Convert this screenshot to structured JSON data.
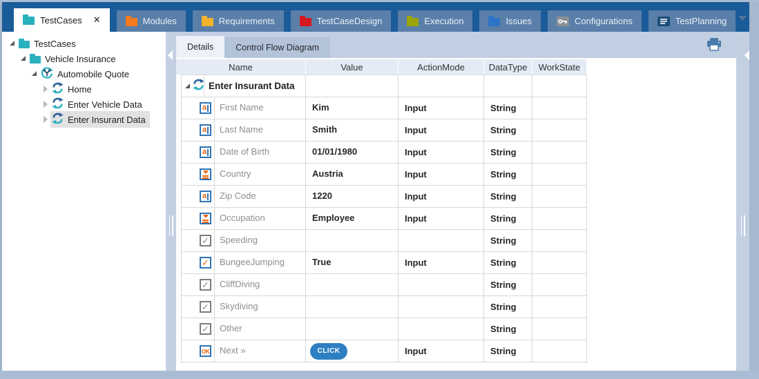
{
  "tabbar": {
    "tabs": [
      {
        "label": "TestCases",
        "icon": "folder-teal-icon",
        "icon_color": "#29b0bd",
        "active": true,
        "closable": true
      },
      {
        "label": "Modules",
        "icon": "folder-orange-icon",
        "icon_color": "#f47b20",
        "active": false
      },
      {
        "label": "Requirements",
        "icon": "folder-amber-icon",
        "icon_color": "#f5b32b",
        "active": false
      },
      {
        "label": "TestCaseDesign",
        "icon": "folder-red-icon",
        "icon_color": "#d6191f",
        "active": false
      },
      {
        "label": "Execution",
        "icon": "folder-olive-icon",
        "icon_color": "#9ba50a",
        "active": false
      },
      {
        "label": "Issues",
        "icon": "folder-blue-icon",
        "icon_color": "#2d74c6",
        "active": false
      },
      {
        "label": "Configurations",
        "icon": "key-icon",
        "icon_color": "#8b9094",
        "active": false
      },
      {
        "label": "TestPlanning",
        "icon": "list-icon",
        "icon_color": "#1d4e79",
        "active": false
      }
    ],
    "close_glyph": "✕"
  },
  "tree": {
    "items": [
      {
        "label": "TestCases",
        "level": 0,
        "state": "expanded",
        "icon": "folder-icon",
        "selected": false
      },
      {
        "label": "Vehicle Insurance",
        "level": 1,
        "state": "expanded",
        "icon": "folder-icon",
        "selected": false
      },
      {
        "label": "Automobile Quote",
        "level": 2,
        "state": "expanded",
        "icon": "testcase-icon",
        "selected": false
      },
      {
        "label": "Home",
        "level": 3,
        "state": "collapsed",
        "icon": "sync-icon",
        "selected": false
      },
      {
        "label": "Enter Vehicle Data",
        "level": 3,
        "state": "collapsed",
        "icon": "sync-icon",
        "selected": false
      },
      {
        "label": "Enter Insurant Data",
        "level": 3,
        "state": "collapsed",
        "icon": "sync-icon",
        "selected": true
      }
    ]
  },
  "details": {
    "tabs": [
      {
        "label": "Details",
        "active": true
      },
      {
        "label": "Control Flow Diagram",
        "active": false
      }
    ]
  },
  "table": {
    "columns": [
      "Name",
      "Value",
      "ActionMode",
      "DataType",
      "WorkState"
    ],
    "root_row": {
      "name": "Enter Insurant Data",
      "icon": "sync-icon",
      "expanded": true
    },
    "rows": [
      {
        "icon": "textbox-icon",
        "name": "First Name",
        "value": "Kim",
        "action_mode": "Input",
        "data_type": "String",
        "work_state": ""
      },
      {
        "icon": "textbox-icon",
        "name": "Last Name",
        "value": "Smith",
        "action_mode": "Input",
        "data_type": "String",
        "work_state": ""
      },
      {
        "icon": "textbox-icon",
        "name": "Date of Birth",
        "value": "01/01/1980",
        "action_mode": "Input",
        "data_type": "String",
        "work_state": ""
      },
      {
        "icon": "dropdown-icon",
        "name": "Country",
        "value": "Austria",
        "action_mode": "Input",
        "data_type": "String",
        "work_state": ""
      },
      {
        "icon": "textbox-icon",
        "name": "Zip Code",
        "value": "1220",
        "action_mode": "Input",
        "data_type": "String",
        "work_state": ""
      },
      {
        "icon": "dropdown-icon",
        "name": "Occupation",
        "value": "Employee",
        "action_mode": "Input",
        "data_type": "String",
        "work_state": ""
      },
      {
        "icon": "checkbox-icon",
        "name": "Speeding",
        "value": "",
        "action_mode": "",
        "data_type": "String",
        "work_state": ""
      },
      {
        "icon": "checkbox-checked-icon",
        "name": "BungeeJumping",
        "value": "True",
        "action_mode": "Input",
        "data_type": "String",
        "work_state": ""
      },
      {
        "icon": "checkbox-icon",
        "name": "CliffDiving",
        "value": "",
        "action_mode": "",
        "data_type": "String",
        "work_state": ""
      },
      {
        "icon": "checkbox-icon",
        "name": "Skydiving",
        "value": "",
        "action_mode": "",
        "data_type": "String",
        "work_state": ""
      },
      {
        "icon": "checkbox-icon",
        "name": "Other",
        "value": "",
        "action_mode": "",
        "data_type": "String",
        "work_state": ""
      },
      {
        "icon": "okbutton-icon",
        "name": "Next »",
        "value": "",
        "value_button": "CLICK",
        "action_mode": "Input",
        "data_type": "String",
        "work_state": ""
      }
    ]
  },
  "colors": {
    "tabbar_bg": "#1a5b99",
    "inactive_tab_bg": "#5a7fa9",
    "strip_bg": "#c2cfe2",
    "header_bg": "#e4ebf4",
    "grid_line": "#d8d8d8",
    "teal": "#2cb1c0",
    "sync_dark": "#2b5f9e",
    "orange": "#e8650f",
    "icon_border_blue": "#2e74b5",
    "click_button_bg": "#2e7fc2",
    "selected_tree_bg": "#e1e1e1"
  }
}
